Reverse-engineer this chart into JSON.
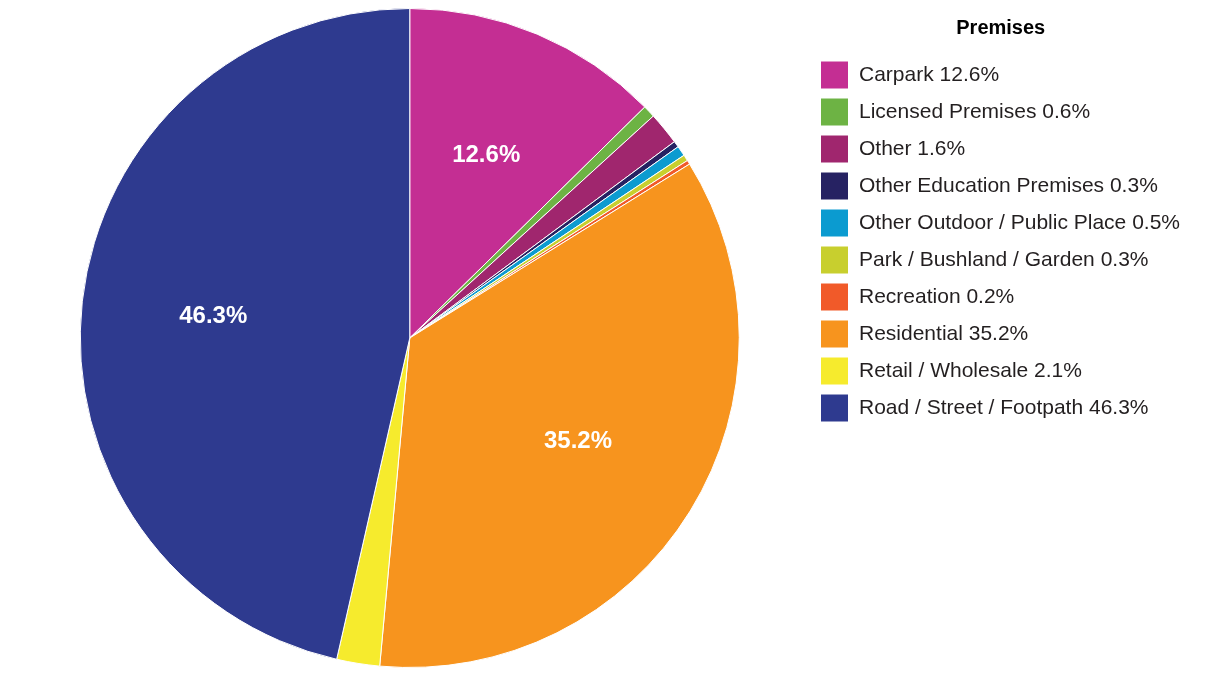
{
  "chart_data": {
    "type": "pie",
    "legend_title": "Premises",
    "legend": "top right",
    "categories": [
      "Carpark 12.6%",
      "Licensed Premises 0.6%",
      "Other 1.6%",
      "Other Education Premises 0.3%",
      "Other Outdoor / Public Place 0.5%",
      "Park / Bushland / Garden 0.3%",
      "Recreation 0.2%",
      "Residential 35.2%",
      "Retail / Wholesale 2.1%",
      "Road / Street / Footpath 46.3%"
    ],
    "values": [
      12.6,
      0.6,
      1.6,
      0.3,
      0.5,
      0.3,
      0.2,
      35.2,
      2.1,
      46.3
    ],
    "colors": [
      "#c42e93",
      "#6db344",
      "#a0266e",
      "#262262",
      "#0b9bd0",
      "#c8cf2e",
      "#f15a29",
      "#f7941e",
      "#f6eb2d",
      "#2e3a8f"
    ],
    "value_labels": [
      "12.6%",
      null,
      null,
      null,
      null,
      null,
      null,
      "35.2%",
      null,
      "46.3%"
    ]
  }
}
